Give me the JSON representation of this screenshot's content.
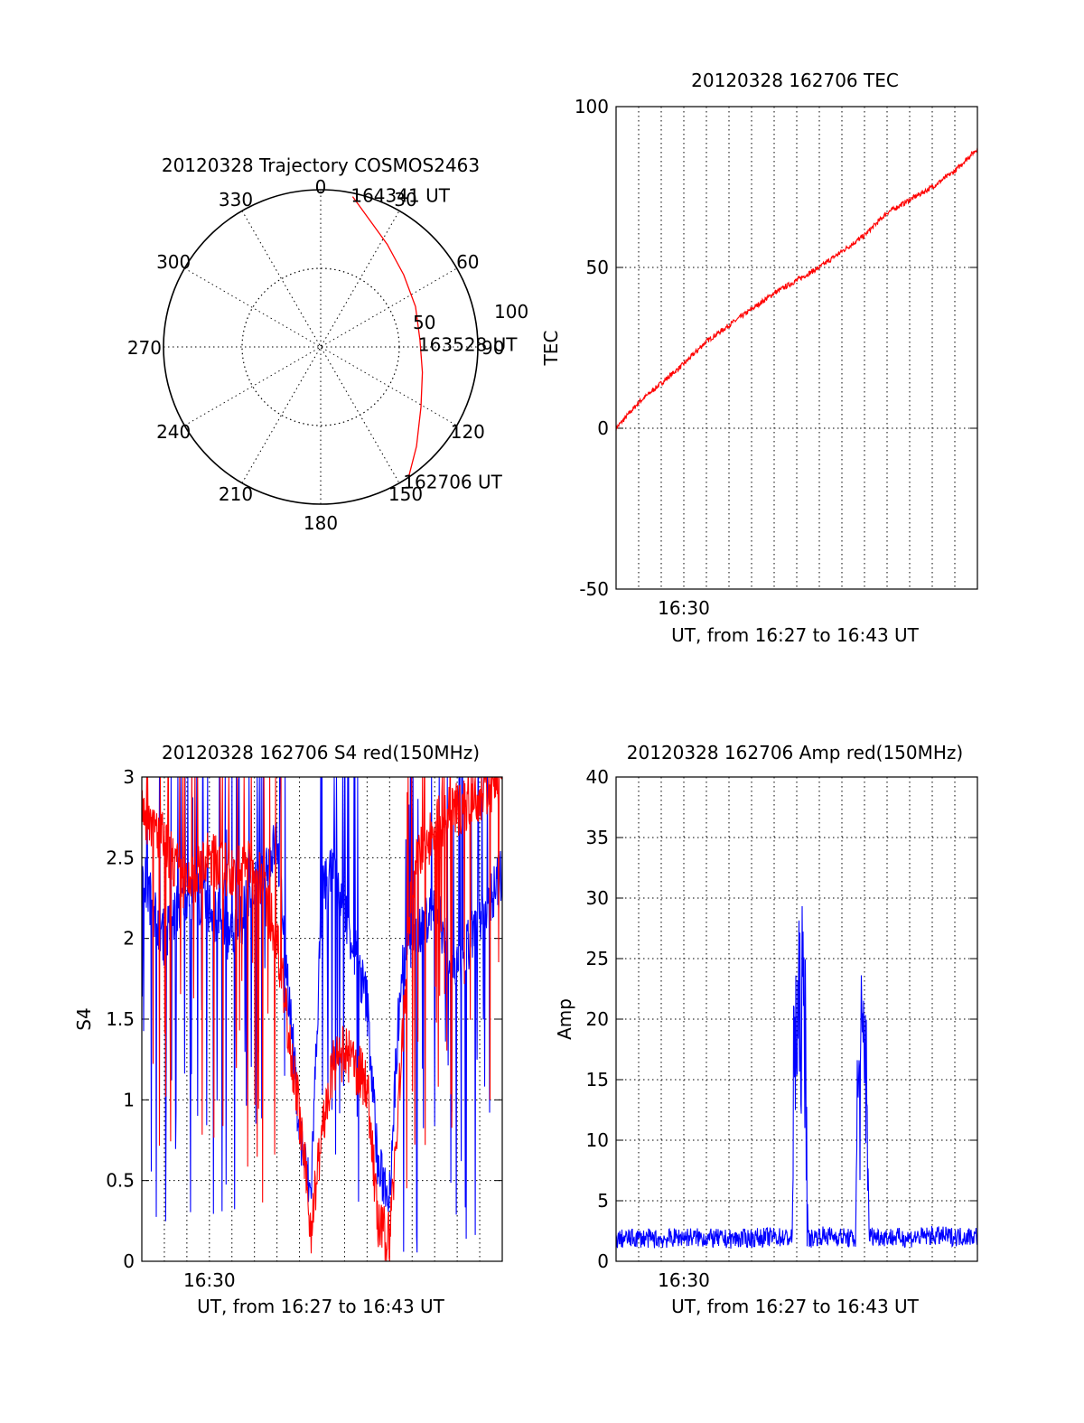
{
  "colors": {
    "red_trace": "#ff0000",
    "blue_trace": "#0000ff",
    "axes": "#000000"
  },
  "chart_data": [
    {
      "type": "polar",
      "title": "20120328 Trajectory COSMOS2463",
      "azimuth_labels": [
        "0",
        "30",
        "60",
        "90",
        "120",
        "150",
        "180",
        "210",
        "240",
        "270",
        "300",
        "330"
      ],
      "radial_labels": [
        "50",
        "100"
      ],
      "grid": true,
      "series": [
        {
          "name": "trajectory",
          "color": "red",
          "points": [
            {
              "azimuth": 12,
              "zenith": 88
            },
            {
              "azimuth": 21,
              "zenith": 78
            },
            {
              "azimuth": 33,
              "zenith": 70
            },
            {
              "azimuth": 49,
              "zenith": 63
            },
            {
              "azimuth": 67,
              "zenith": 59
            },
            {
              "azimuth": 86,
              "zenith": 57
            },
            {
              "azimuth": 104,
              "zenith": 60
            },
            {
              "azimuth": 121,
              "zenith": 67
            },
            {
              "azimuth": 136,
              "zenith": 79
            },
            {
              "azimuth": 146,
              "zenith": 90
            }
          ]
        }
      ],
      "annotations": [
        {
          "text": "164341 UT",
          "at": "start"
        },
        {
          "text": "163528 UT",
          "at": "middle"
        },
        {
          "text": "162706 UT",
          "at": "end"
        }
      ]
    },
    {
      "type": "line",
      "title": "20120328 162706 TEC",
      "xlabel": "UT, from 16:27 to 16:43 UT",
      "ylabel": "TEC",
      "xlim": [
        0,
        16
      ],
      "ylim": [
        -50,
        100
      ],
      "yticks": [
        "-50",
        "0",
        "50",
        "100"
      ],
      "xtick_label": "16:30",
      "xtick_at": 3,
      "grid": true,
      "series": [
        {
          "name": "TEC",
          "color": "red",
          "x": [
            0,
            1,
            2,
            3,
            4,
            5,
            6,
            7,
            8,
            9,
            10,
            11,
            12,
            13,
            14,
            15,
            16
          ],
          "y": [
            0,
            8,
            14,
            20,
            27,
            32,
            37,
            42,
            46,
            50,
            55,
            60,
            67,
            71,
            75,
            80,
            87
          ]
        }
      ]
    },
    {
      "type": "line",
      "title": "20120328 162706 S4 red(150MHz)",
      "xlabel": "UT, from 16:27 to 16:43 UT",
      "ylabel": "S4",
      "xlim": [
        0,
        16
      ],
      "ylim": [
        0,
        3
      ],
      "yticks": [
        "0",
        "0.5",
        "1",
        "1.5",
        "2",
        "2.5",
        "3"
      ],
      "xtick_label": "16:30",
      "xtick_at": 3,
      "grid": true,
      "series": [
        {
          "name": "S4 blue",
          "color": "blue",
          "x": [
            0,
            1,
            2,
            3,
            4,
            5,
            6,
            7,
            7.5,
            8,
            8.5,
            9,
            10,
            10.5,
            11,
            11.5,
            12,
            13,
            14,
            15,
            16
          ],
          "y": [
            2.4,
            2.0,
            2.3,
            2.2,
            2.0,
            2.3,
            2.6,
            0.8,
            0.4,
            2.3,
            2.4,
            2.2,
            1.6,
            0.55,
            0.45,
            1.8,
            2.0,
            2.2,
            1.8,
            2.1,
            2.4
          ]
        },
        {
          "name": "S4 red",
          "color": "red",
          "x": [
            0,
            1,
            2,
            3,
            4,
            5,
            6,
            7,
            7.5,
            8,
            8.5,
            9,
            10,
            10.5,
            11,
            11.5,
            12,
            13,
            14,
            15,
            16
          ],
          "y": [
            2.8,
            2.6,
            2.3,
            2.5,
            2.4,
            2.5,
            2.0,
            0.9,
            0.2,
            0.8,
            1.2,
            1.3,
            1.1,
            0.2,
            0.15,
            1.2,
            2.4,
            2.7,
            2.8,
            2.9,
            3.0
          ]
        }
      ]
    },
    {
      "type": "line",
      "title": "20120328 162706 Amp red(150MHz)",
      "xlabel": "UT, from 16:27 to 16:43 UT",
      "ylabel": "Amp",
      "xlim": [
        0,
        16
      ],
      "ylim": [
        0,
        40
      ],
      "yticks": [
        "0",
        "5",
        "10",
        "15",
        "20",
        "25",
        "30",
        "35",
        "40"
      ],
      "xtick_label": "16:30",
      "xtick_at": 3,
      "grid": true,
      "series": [
        {
          "name": "Amp blue",
          "color": "blue",
          "x": [
            0,
            1,
            2,
            3,
            4,
            5,
            6,
            7,
            7.8,
            7.9,
            8.0,
            8.2,
            8.4,
            8.5,
            9,
            10,
            10.6,
            10.7,
            10.9,
            11.1,
            11.2,
            12,
            13,
            14,
            15,
            16
          ],
          "y": [
            1.5,
            1.6,
            1.5,
            1.7,
            1.6,
            1.5,
            1.6,
            1.7,
            1.6,
            20,
            18,
            21,
            19,
            1.5,
            1.8,
            1.7,
            1.5,
            14,
            16,
            17,
            1.8,
            1.7,
            1.6,
            1.8,
            1.7,
            1.8
          ]
        }
      ]
    }
  ]
}
